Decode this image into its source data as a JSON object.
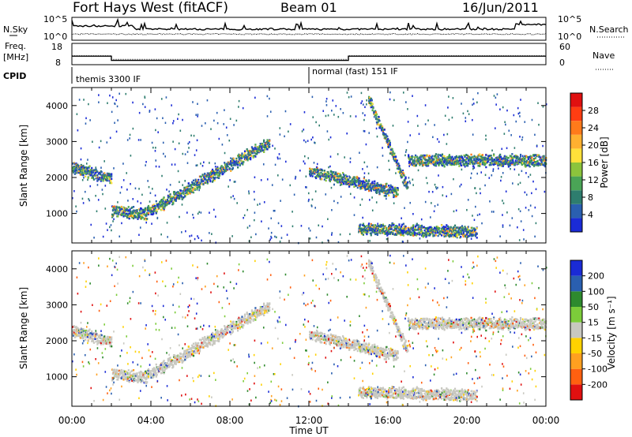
{
  "header": {
    "station": "Fort Hays West (fitACF)",
    "beam": "Beam 01",
    "date": "16/Jun/2011"
  },
  "noise_panel": {
    "left_label": "N.Sky",
    "left_ticks": [
      "10^5",
      "10^0"
    ],
    "right_label": "N.Search",
    "right_ticks": [
      "10^5",
      "10^0"
    ]
  },
  "freq_panel": {
    "left_label_1": "Freq.",
    "left_label_2": "[MHz]",
    "left_ticks": [
      "18",
      "8"
    ],
    "right_label": "Nave",
    "right_ticks": [
      "60",
      "0"
    ],
    "freq_steps": [
      {
        "t": 0,
        "f": 12
      },
      {
        "t": 2,
        "f": 10
      },
      {
        "t": 14,
        "f": 12
      },
      {
        "t": 24,
        "f": 12
      }
    ],
    "nave_steps": [
      {
        "t": 0,
        "n": 25
      },
      {
        "t": 2,
        "n": 15
      },
      {
        "t": 14,
        "n": 25
      },
      {
        "t": 24,
        "n": 25
      }
    ]
  },
  "cpid": {
    "label": "CPID",
    "segments": [
      {
        "start": 0,
        "text": "themis 3300 IF"
      },
      {
        "start": 12,
        "text": "normal (fast) 151 IF"
      }
    ]
  },
  "chart_data": [
    {
      "type": "heatmap",
      "name": "Power",
      "ylabel": "Slant Range [km]",
      "xlabel": "Time UT",
      "xlim": [
        0,
        24
      ],
      "ylim": [
        180,
        4500
      ],
      "yticks": [
        "1000",
        "2000",
        "3000",
        "4000"
      ],
      "xticks": [
        "00:00",
        "04:00",
        "08:00",
        "12:00",
        "16:00",
        "20:00",
        "00:00"
      ],
      "colorbar": {
        "label": "Power [dB]",
        "ticks": [
          "4",
          "8",
          "12",
          "16",
          "20",
          "24",
          "28"
        ],
        "colors": [
          "#1a2bd6",
          "#2a5fb0",
          "#2e7d6e",
          "#4aa456",
          "#8cc43c",
          "#ffe03a",
          "#ffb030",
          "#ff7a1a",
          "#ff3d12",
          "#e01010"
        ]
      },
      "features": [
        {
          "desc": "echo band",
          "t_start": 0,
          "t_end": 2.0,
          "range_km": [
            2300,
            2000
          ]
        },
        {
          "desc": "echo band",
          "t_start": 2.0,
          "t_end": 3.8,
          "range_km": [
            1100,
            1000
          ]
        },
        {
          "desc": "echo band",
          "t_start": 3.8,
          "t_end": 10.0,
          "range_km": [
            1050,
            3000
          ]
        },
        {
          "desc": "echo band",
          "t_start": 12.0,
          "t_end": 16.5,
          "range_km": [
            2200,
            1600
          ]
        },
        {
          "desc": "echo band",
          "t_start": 15.0,
          "t_end": 17.0,
          "range_km": [
            4200,
            1700
          ]
        },
        {
          "desc": "echo band",
          "t_start": 17.0,
          "t_end": 24.0,
          "range_km": [
            2500,
            2500
          ]
        },
        {
          "desc": "echo band",
          "t_start": 14.5,
          "t_end": 20.5,
          "range_km": [
            600,
            500
          ]
        }
      ]
    },
    {
      "type": "heatmap",
      "name": "Velocity",
      "ylabel": "Slant Range [km]",
      "xlabel": "Time UT",
      "xlim": [
        0,
        24
      ],
      "ylim": [
        180,
        4500
      ],
      "yticks": [
        "1000",
        "2000",
        "3000",
        "4000"
      ],
      "xticks": [
        "00:00",
        "04:00",
        "08:00",
        "12:00",
        "16:00",
        "20:00",
        "00:00"
      ],
      "colorbar": {
        "label": "Velocity [m s⁻¹]",
        "ticks": [
          "200",
          "100",
          "50",
          "15",
          "-15",
          "-50",
          "-100",
          "-200"
        ],
        "colors": [
          "#1a2bd6",
          "#2a5fb0",
          "#2e8a2e",
          "#7ccc3a",
          "#c8c8c0",
          "#ffd200",
          "#ffa020",
          "#ff6010",
          "#e01010"
        ]
      }
    }
  ],
  "x_axis": {
    "label": "Time UT",
    "ticks": [
      "00:00",
      "04:00",
      "08:00",
      "12:00",
      "16:00",
      "20:00",
      "00:00"
    ]
  }
}
